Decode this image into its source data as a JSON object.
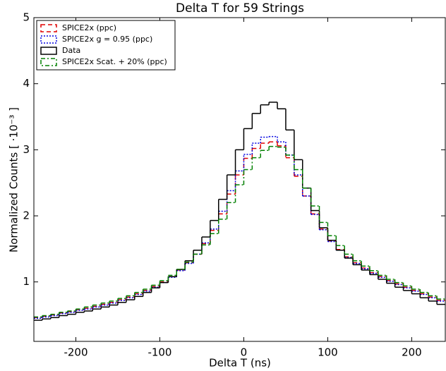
{
  "chart_data": {
    "type": "step-histogram",
    "title": "Delta T for 59 Strings",
    "xlabel": "Delta T (ns)",
    "ylabel": "Normalized Counts [ ·10⁻³ ]",
    "xlim": [
      -250,
      240
    ],
    "ylim": [
      0.1,
      5
    ],
    "xticks": [
      -200,
      -100,
      0,
      100,
      200
    ],
    "yticks": [
      1,
      2,
      3,
      4,
      5
    ],
    "legend": "upper left",
    "bins": [
      -250,
      -240,
      -230,
      -220,
      -210,
      -200,
      -190,
      -180,
      -170,
      -160,
      -150,
      -140,
      -130,
      -120,
      -110,
      -100,
      -90,
      -80,
      -70,
      -60,
      -50,
      -40,
      -30,
      -20,
      -10,
      0,
      10,
      20,
      30,
      40,
      50,
      60,
      70,
      80,
      90,
      100,
      110,
      120,
      130,
      140,
      150,
      160,
      170,
      180,
      190,
      200,
      210,
      220,
      230,
      240
    ],
    "series": [
      {
        "name": "SPICE2x (ppc)",
        "color": "#e00000",
        "dash": "6,4",
        "values": [
          0.46,
          0.48,
          0.5,
          0.53,
          0.55,
          0.58,
          0.6,
          0.63,
          0.66,
          0.69,
          0.73,
          0.77,
          0.82,
          0.87,
          0.93,
          1.0,
          1.08,
          1.18,
          1.29,
          1.42,
          1.58,
          1.78,
          2.03,
          2.33,
          2.62,
          2.87,
          3.02,
          3.1,
          3.12,
          3.06,
          2.88,
          2.6,
          2.3,
          2.03,
          1.8,
          1.62,
          1.49,
          1.38,
          1.29,
          1.21,
          1.14,
          1.08,
          1.02,
          0.97,
          0.92,
          0.87,
          0.82,
          0.77,
          0.72
        ]
      },
      {
        "name": "SPICE2x g = 0.95 (ppc)",
        "color": "#0000e0",
        "dash": "2,2",
        "values": [
          0.45,
          0.47,
          0.49,
          0.52,
          0.54,
          0.57,
          0.59,
          0.62,
          0.65,
          0.68,
          0.72,
          0.76,
          0.81,
          0.86,
          0.92,
          0.99,
          1.07,
          1.17,
          1.28,
          1.42,
          1.59,
          1.8,
          2.07,
          2.38,
          2.68,
          2.93,
          3.1,
          3.19,
          3.2,
          3.12,
          2.92,
          2.62,
          2.3,
          2.02,
          1.79,
          1.61,
          1.48,
          1.37,
          1.28,
          1.2,
          1.13,
          1.07,
          1.01,
          0.96,
          0.91,
          0.86,
          0.81,
          0.76,
          0.71
        ]
      },
      {
        "name": "Data",
        "color": "#000000",
        "dash": "none",
        "values": [
          0.42,
          0.44,
          0.46,
          0.49,
          0.51,
          0.54,
          0.56,
          0.59,
          0.62,
          0.65,
          0.69,
          0.73,
          0.78,
          0.84,
          0.91,
          0.99,
          1.08,
          1.19,
          1.32,
          1.48,
          1.68,
          1.93,
          2.25,
          2.62,
          3.0,
          3.32,
          3.55,
          3.68,
          3.72,
          3.62,
          3.3,
          2.85,
          2.42,
          2.08,
          1.82,
          1.63,
          1.48,
          1.36,
          1.26,
          1.18,
          1.11,
          1.04,
          0.98,
          0.92,
          0.87,
          0.82,
          0.76,
          0.71,
          0.66
        ]
      },
      {
        "name": "SPICE2x Scat. + 20% (ppc)",
        "color": "#008000",
        "dash": "6,3,2,3",
        "values": [
          0.47,
          0.49,
          0.51,
          0.54,
          0.56,
          0.59,
          0.62,
          0.65,
          0.68,
          0.71,
          0.75,
          0.79,
          0.84,
          0.89,
          0.95,
          1.02,
          1.1,
          1.19,
          1.3,
          1.42,
          1.56,
          1.73,
          1.95,
          2.2,
          2.47,
          2.7,
          2.88,
          2.99,
          3.05,
          3.04,
          2.92,
          2.7,
          2.42,
          2.15,
          1.9,
          1.7,
          1.55,
          1.42,
          1.32,
          1.24,
          1.17,
          1.1,
          1.04,
          0.99,
          0.94,
          0.89,
          0.84,
          0.79,
          0.74
        ]
      }
    ]
  }
}
